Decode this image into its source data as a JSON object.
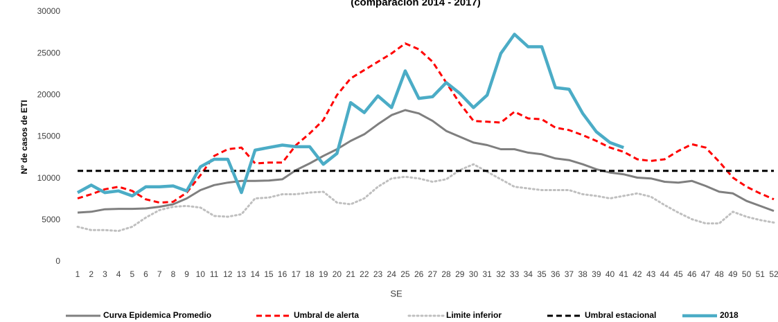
{
  "chart_data": {
    "type": "line",
    "title": "(comparación 2014 - 2017)",
    "x_label": "SE",
    "y_label": "Nº de casos de ETI",
    "categories": [
      1,
      2,
      3,
      4,
      5,
      6,
      7,
      8,
      9,
      10,
      11,
      12,
      13,
      14,
      15,
      16,
      17,
      18,
      19,
      20,
      21,
      22,
      23,
      24,
      25,
      26,
      27,
      28,
      29,
      30,
      31,
      32,
      33,
      34,
      35,
      36,
      37,
      38,
      39,
      40,
      41,
      42,
      43,
      44,
      45,
      46,
      47,
      48,
      49,
      50,
      51,
      52
    ],
    "ylim": [
      0,
      30000
    ],
    "yticks": [
      0,
      5000,
      10000,
      15000,
      20000,
      25000,
      30000
    ],
    "grid": false,
    "legend": "bottom",
    "series": [
      {
        "name": "Curva Epidemica Promedio",
        "color": "#7f7f7f",
        "line_style": "solid",
        "values": [
          5900,
          6000,
          6300,
          6350,
          6350,
          6400,
          6600,
          6900,
          7600,
          8600,
          9200,
          9500,
          9700,
          9700,
          9750,
          9900,
          11000,
          11800,
          12700,
          13500,
          14500,
          15300,
          16500,
          17600,
          18200,
          17800,
          16900,
          15700,
          15000,
          14300,
          14000,
          13500,
          13500,
          13100,
          12900,
          12400,
          12200,
          11700,
          11100,
          10700,
          10500,
          10100,
          10000,
          9600,
          9500,
          9700,
          9100,
          8400,
          8200,
          7300,
          6700,
          6100
        ]
      },
      {
        "name": "Umbral de alerta",
        "color": "#ff0000",
        "line_style": "dashed",
        "values": [
          7600,
          8100,
          8700,
          9000,
          8500,
          7500,
          7100,
          7200,
          8300,
          10400,
          12700,
          13500,
          13700,
          11800,
          11900,
          11900,
          14000,
          15400,
          17000,
          20000,
          22000,
          23000,
          24000,
          25000,
          26200,
          25500,
          24000,
          21500,
          19000,
          16900,
          16800,
          16700,
          18000,
          17200,
          17100,
          16100,
          15800,
          15200,
          14500,
          13700,
          13200,
          12300,
          12100,
          12300,
          13300,
          14100,
          13700,
          12000,
          10100,
          9000,
          8200,
          7500
        ]
      },
      {
        "name": "Limite inferior",
        "color": "#bfbfbf",
        "line_style": "dotted",
        "values": [
          4200,
          3800,
          3800,
          3700,
          4200,
          5300,
          6200,
          6600,
          6700,
          6500,
          5500,
          5400,
          5700,
          7600,
          7700,
          8100,
          8100,
          8300,
          8400,
          7100,
          6900,
          7600,
          9000,
          10000,
          10200,
          10000,
          9600,
          9900,
          11000,
          11700,
          10800,
          9900,
          9000,
          8800,
          8600,
          8600,
          8600,
          8100,
          7900,
          7600,
          7900,
          8200,
          7800,
          6800,
          5900,
          5100,
          4600,
          4600,
          6000,
          5400,
          5000,
          4700
        ]
      },
      {
        "name": "Umbral estacional",
        "color": "#000000",
        "line_style": "dashed",
        "values": [
          10900,
          10900,
          10900,
          10900,
          10900,
          10900,
          10900,
          10900,
          10900,
          10900,
          10900,
          10900,
          10900,
          10900,
          10900,
          10900,
          10900,
          10900,
          10900,
          10900,
          10900,
          10900,
          10900,
          10900,
          10900,
          10900,
          10900,
          10900,
          10900,
          10900,
          10900,
          10900,
          10900,
          10900,
          10900,
          10900,
          10900,
          10900,
          10900,
          10900,
          10900,
          10900,
          10900,
          10900,
          10900,
          10900,
          10900,
          10900,
          10900,
          10900,
          10900,
          10900
        ]
      },
      {
        "name": "2018",
        "color": "#4bacc6",
        "line_style": "solid",
        "values": [
          8300,
          9200,
          8300,
          8500,
          7900,
          9000,
          9000,
          9100,
          8500,
          11400,
          12300,
          12300,
          8300,
          13400,
          13700,
          14000,
          13800,
          13800,
          11700,
          13000,
          19100,
          17900,
          19900,
          18500,
          22900,
          19600,
          19800,
          21500,
          20200,
          18500,
          20000,
          25000,
          27300,
          25800,
          25800,
          20900,
          20700,
          17800,
          15600,
          14300,
          13700,
          null,
          null,
          null,
          null,
          null,
          null,
          null,
          null,
          null,
          null,
          null
        ]
      }
    ]
  }
}
